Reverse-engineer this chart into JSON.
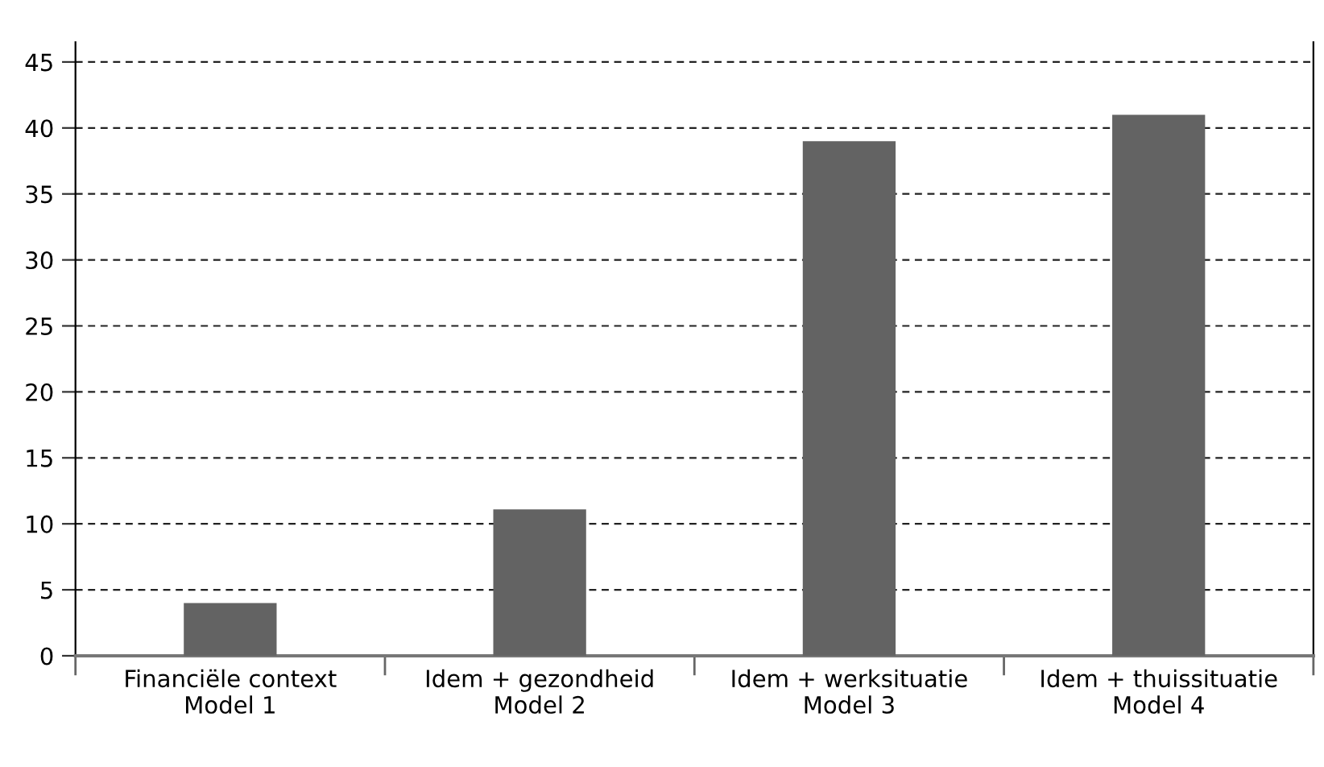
{
  "chart_data": {
    "type": "bar",
    "categories": [
      "Financiële context\nModel 1",
      "Idem + gezondheid\nModel 2",
      "Idem + werksituatie\nModel 3",
      "Idem + thuissituatie\nModel 4"
    ],
    "values": [
      4,
      11.1,
      39,
      41
    ],
    "color": "#636363",
    "ylim": [
      0,
      46.5
    ],
    "yticks": [
      0,
      5,
      10,
      15,
      20,
      25,
      30,
      35,
      40,
      45
    ],
    "grid": "y",
    "legend": false
  }
}
